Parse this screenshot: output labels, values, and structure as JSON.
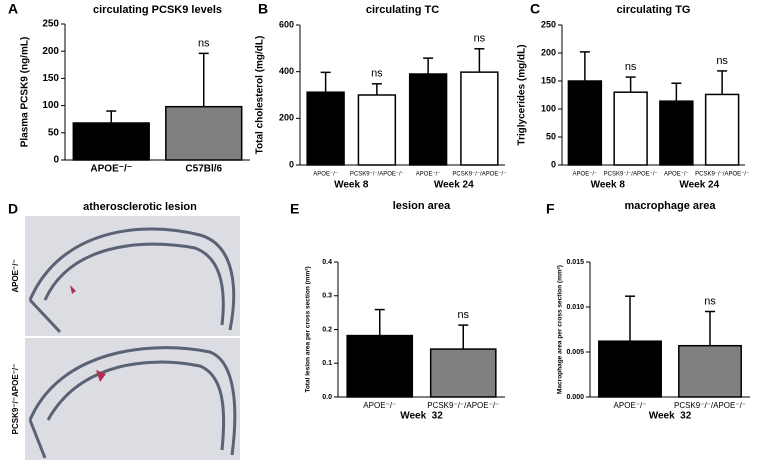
{
  "chart_data": [
    {
      "type": "bar",
      "letter": "A",
      "title": "circulating PCSK9 levels",
      "ylabel": "Plasma PCSK9 (ng/mL)",
      "categories": [
        "APOE⁻/⁻",
        "C57Bl/6"
      ],
      "values": [
        68,
        98
      ],
      "errors": [
        22,
        98
      ],
      "colors": [
        "#000000",
        "#808080"
      ],
      "bar_annotations": [
        null,
        "ns"
      ],
      "ylim": [
        0,
        250
      ],
      "yticks": [
        0,
        50,
        100,
        150,
        200,
        250
      ]
    },
    {
      "type": "bar",
      "letter": "B",
      "title": "circulating TC",
      "ylabel": "Total cholesterol (mg/dL)",
      "categories": [
        "APOE⁻/⁻",
        "PCSK9⁻/⁻/APOE⁻/⁻",
        "APOE⁻/⁻",
        "PCSK9⁻/⁻/APOE⁻/⁻"
      ],
      "values": [
        312,
        300,
        390,
        398
      ],
      "errors": [
        85,
        48,
        68,
        100
      ],
      "colors": [
        "#000000",
        "#ffffff",
        "#000000",
        "#ffffff"
      ],
      "bar_annotations": [
        null,
        "ns",
        null,
        "ns"
      ],
      "group_labels": [
        "Week 8",
        "Week 24"
      ],
      "ylim": [
        0,
        600
      ],
      "yticks": [
        0,
        200,
        400,
        600
      ]
    },
    {
      "type": "bar",
      "letter": "C",
      "title": "circulating TG",
      "ylabel": "Triglycerides (mg/dL)",
      "categories": [
        "APOE⁻/⁻",
        "PCSK9⁻/⁻/APOE⁻/⁻",
        "APOE⁻/⁻",
        "PCSK9⁻/⁻/APOE⁻/⁻"
      ],
      "values": [
        150,
        130,
        114,
        126
      ],
      "errors": [
        52,
        27,
        32,
        42
      ],
      "colors": [
        "#000000",
        "#ffffff",
        "#000000",
        "#ffffff"
      ],
      "bar_annotations": [
        null,
        "ns",
        null,
        "ns"
      ],
      "group_labels": [
        "Week 8",
        "Week 24"
      ],
      "ylim": [
        0,
        250
      ],
      "yticks": [
        0,
        50,
        100,
        150,
        200,
        250
      ]
    },
    {
      "type": "bar",
      "letter": "E",
      "title": "lesion area",
      "ylabel": "Total lesion area per cross section (mm²)",
      "categories": [
        "APOE⁻/⁻",
        "PCSK9⁻/⁻/APOE⁻/⁻"
      ],
      "values": [
        0.182,
        0.142
      ],
      "errors": [
        0.077,
        0.071
      ],
      "colors": [
        "#000000",
        "#808080"
      ],
      "bar_annotations": [
        null,
        "ns"
      ],
      "xlabel": "Week  32",
      "ylim": [
        0,
        0.4
      ],
      "yticks": [
        {
          "value": 0,
          "label": "0.0"
        },
        0.1,
        0.2,
        0.3,
        0.4
      ]
    },
    {
      "type": "bar",
      "letter": "F",
      "title": "macrophage area",
      "ylabel": "Macrophage area per cross section (mm²)",
      "categories": [
        "APOE⁻/⁻",
        "PCSK9⁻/⁻/APOE⁻/⁻"
      ],
      "values": [
        0.0062,
        0.0057
      ],
      "errors": [
        0.005,
        0.0038
      ],
      "colors": [
        "#000000",
        "#808080"
      ],
      "bar_annotations": [
        null,
        "ns"
      ],
      "xlabel": "Week  32",
      "ylim": [
        0,
        0.015
      ],
      "yticks": [
        {
          "value": 0,
          "label": "0.000"
        },
        {
          "value": 0.005,
          "label": "0.005"
        },
        {
          "value": 0.01,
          "label": "0.010"
        },
        {
          "value": 0.015,
          "label": "0.015"
        }
      ]
    }
  ],
  "image_panel": {
    "letter": "D",
    "title": "atherosclerotic lesion",
    "labels": [
      "APOE⁻/⁻",
      "PCSK9⁻/⁻APOE⁻/⁻"
    ]
  }
}
